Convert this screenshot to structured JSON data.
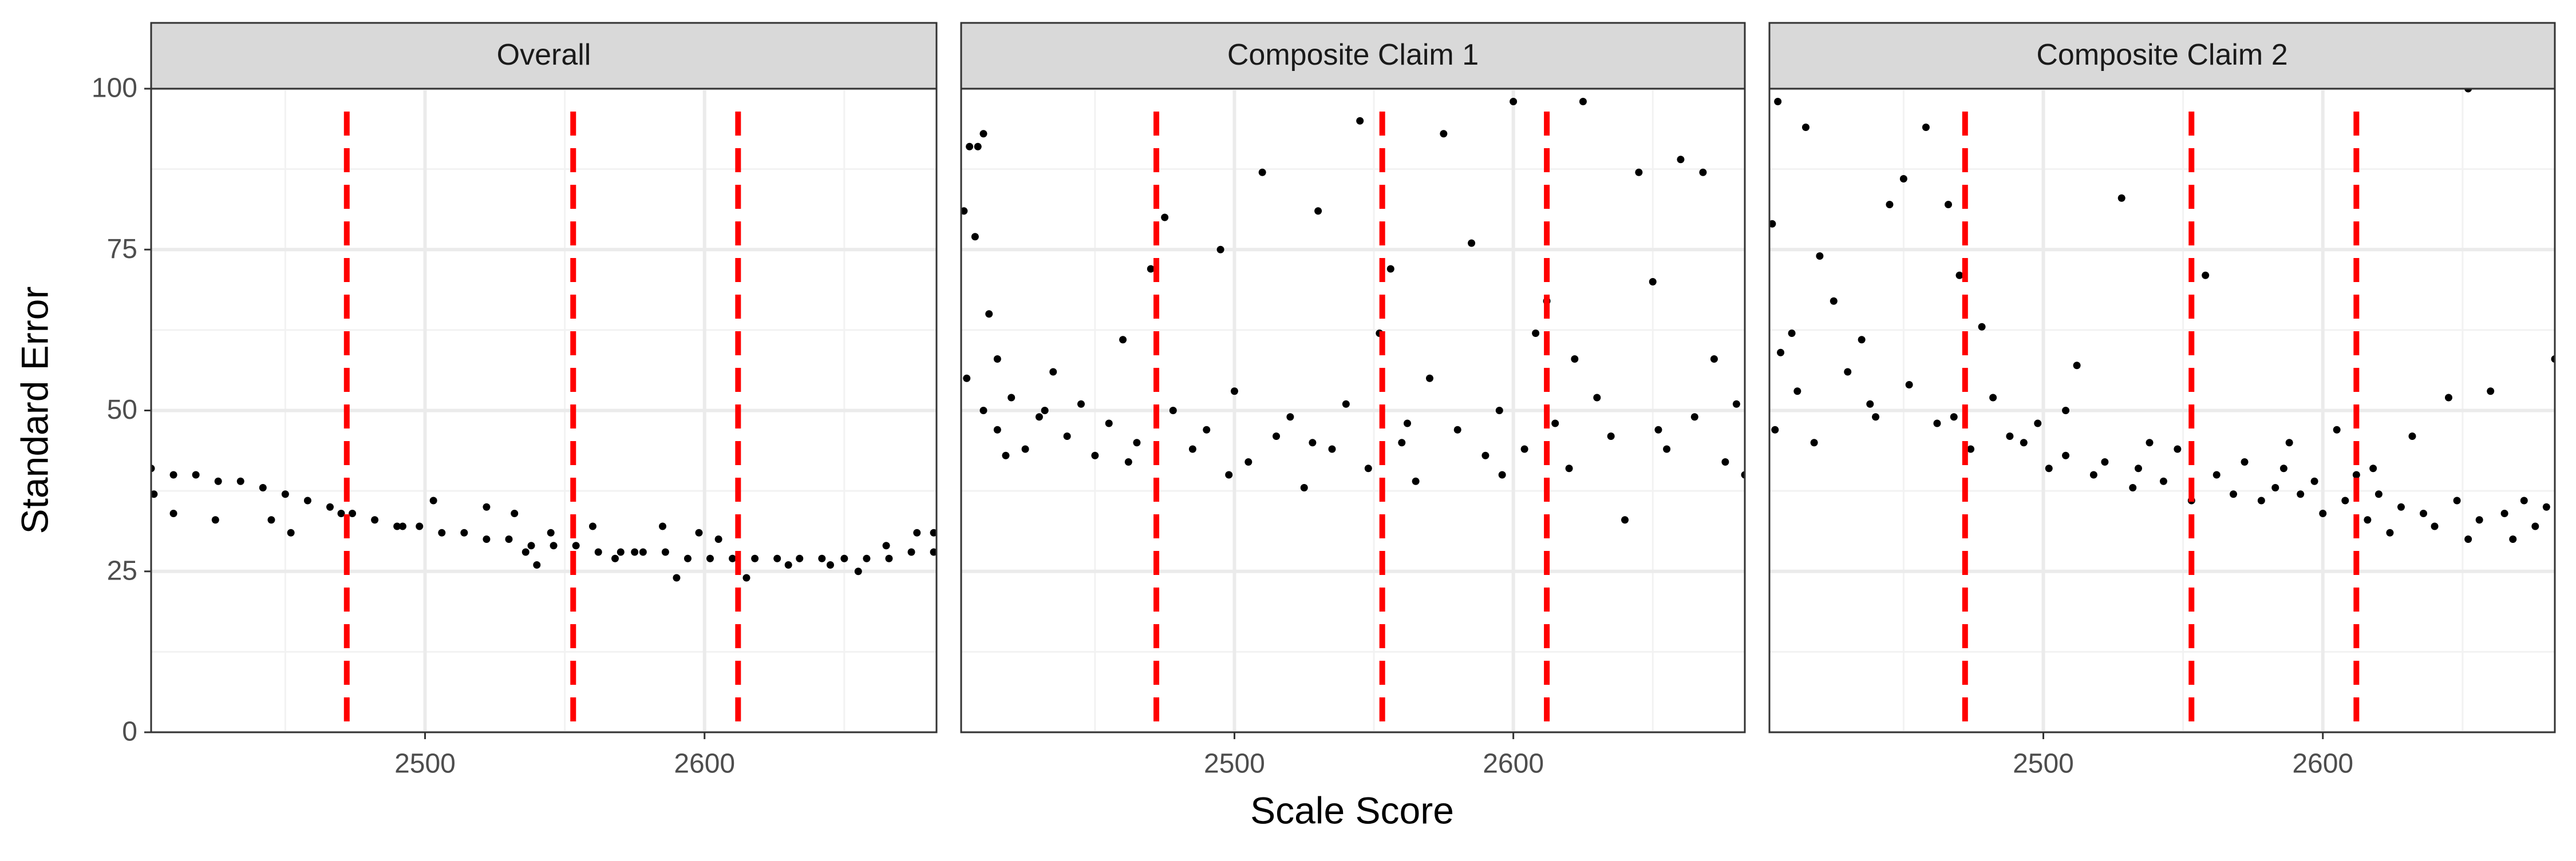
{
  "chart_data": {
    "type": "scatter",
    "xlabel": "Scale Score",
    "ylabel": "Standard Error",
    "xlim": [
      2402,
      2683
    ],
    "ylim": [
      0,
      100
    ],
    "xticks": [
      2500,
      2600
    ],
    "yticks": [
      0,
      25,
      50,
      75,
      100
    ],
    "minor_xticks": [
      2450,
      2550,
      2650
    ],
    "minor_yticks": [
      12.5,
      37.5,
      62.5,
      87.5
    ],
    "grid": true,
    "color": "#000000",
    "vlines": [
      2472,
      2553,
      2612
    ],
    "vline_color": "#ff0000",
    "panels": [
      {
        "title": "Overall",
        "x": [
          2402,
          2410,
          2418,
          2426,
          2434,
          2442,
          2450,
          2458,
          2466,
          2474,
          2482,
          2490,
          2498,
          2506,
          2514,
          2522,
          2530,
          2538,
          2546,
          2554,
          2562,
          2570,
          2578,
          2586,
          2594,
          2602,
          2610,
          2618,
          2626,
          2634,
          2642,
          2650,
          2658,
          2666,
          2674,
          2682,
          2403,
          2410,
          2425,
          2445,
          2452,
          2470,
          2492,
          2503,
          2522,
          2532,
          2536,
          2540,
          2545,
          2560,
          2568,
          2575,
          2585,
          2590,
          2598,
          2605,
          2615,
          2630,
          2645,
          2655,
          2665,
          2676,
          2682
        ],
        "y": [
          41,
          40,
          40,
          39,
          39,
          38,
          37,
          36,
          35,
          34,
          33,
          32,
          32,
          31,
          31,
          30,
          30,
          29,
          29,
          29,
          28,
          28,
          28,
          28,
          27,
          27,
          27,
          27,
          27,
          27,
          27,
          27,
          27,
          27,
          28,
          28,
          37,
          34,
          33,
          33,
          31,
          34,
          32,
          36,
          35,
          34,
          28,
          26,
          31,
          32,
          27,
          28,
          32,
          24,
          31,
          30,
          24,
          26,
          26,
          25,
          29,
          31,
          31
        ]
      },
      {
        "title": "Composite Claim 1",
        "x": [
          2403,
          2405,
          2408,
          2410,
          2407,
          2412,
          2415,
          2404,
          2410,
          2415,
          2420,
          2425,
          2430,
          2435,
          2440,
          2445,
          2450,
          2455,
          2460,
          2465,
          2470,
          2475,
          2478,
          2485,
          2490,
          2495,
          2500,
          2505,
          2510,
          2515,
          2520,
          2525,
          2530,
          2535,
          2540,
          2545,
          2548,
          2552,
          2556,
          2560,
          2565,
          2570,
          2575,
          2580,
          2585,
          2590,
          2595,
          2600,
          2604,
          2608,
          2612,
          2615,
          2620,
          2625,
          2630,
          2635,
          2640,
          2645,
          2650,
          2655,
          2660,
          2665,
          2668,
          2672,
          2676,
          2680,
          2683,
          2418,
          2432,
          2462,
          2498,
          2528,
          2562,
          2596,
          2622,
          2652
        ],
        "y": [
          81,
          91,
          91,
          93,
          77,
          65,
          58,
          55,
          50,
          47,
          52,
          44,
          49,
          56,
          46,
          51,
          43,
          48,
          61,
          45,
          72,
          80,
          50,
          44,
          47,
          75,
          53,
          42,
          87,
          46,
          49,
          38,
          81,
          44,
          51,
          95,
          41,
          62,
          72,
          45,
          39,
          55,
          93,
          47,
          76,
          43,
          50,
          98,
          44,
          62,
          67,
          48,
          41,
          98,
          52,
          46,
          33,
          87,
          70,
          44,
          89,
          49,
          87,
          58,
          42,
          51,
          40,
          43,
          50,
          42,
          40,
          45,
          48,
          40,
          58,
          47
        ]
      },
      {
        "title": "Composite Claim 2",
        "x": [
          2403,
          2405,
          2415,
          2406,
          2410,
          2404,
          2412,
          2420,
          2425,
          2430,
          2435,
          2440,
          2445,
          2450,
          2452,
          2458,
          2462,
          2466,
          2470,
          2474,
          2478,
          2482,
          2488,
          2493,
          2498,
          2502,
          2508,
          2512,
          2518,
          2522,
          2528,
          2532,
          2538,
          2543,
          2548,
          2553,
          2558,
          2562,
          2568,
          2572,
          2578,
          2583,
          2588,
          2592,
          2597,
          2600,
          2605,
          2608,
          2612,
          2616,
          2620,
          2624,
          2628,
          2632,
          2636,
          2640,
          2645,
          2648,
          2652,
          2656,
          2660,
          2665,
          2668,
          2672,
          2676,
          2680,
          2683,
          2652,
          2418,
          2438,
          2468,
          2508,
          2534,
          2586,
          2618
        ],
        "y": [
          79,
          98,
          94,
          59,
          62,
          47,
          53,
          74,
          67,
          56,
          61,
          49,
          82,
          86,
          54,
          94,
          48,
          82,
          71,
          44,
          63,
          52,
          46,
          45,
          48,
          41,
          43,
          57,
          40,
          42,
          83,
          38,
          45,
          39,
          44,
          36,
          71,
          40,
          37,
          42,
          36,
          38,
          45,
          37,
          39,
          34,
          47,
          36,
          40,
          33,
          37,
          31,
          35,
          46,
          34,
          32,
          52,
          36,
          30,
          33,
          53,
          34,
          30,
          36,
          32,
          35,
          58,
          100,
          45,
          51,
          49,
          50,
          41,
          41,
          41
        ]
      }
    ]
  }
}
